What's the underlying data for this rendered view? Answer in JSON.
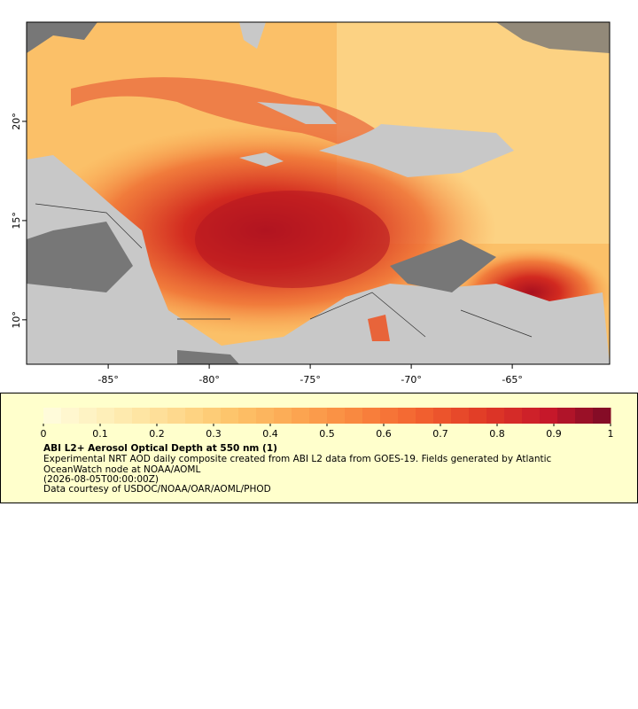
{
  "map": {
    "xlim": [
      -89.04,
      -60.18
    ],
    "ylim": [
      7.76,
      25.0
    ],
    "xticks": [
      {
        "value": -85,
        "label": "-85°"
      },
      {
        "value": -80,
        "label": "-80°"
      },
      {
        "value": -75,
        "label": "-75°"
      },
      {
        "value": -70,
        "label": "-70°"
      },
      {
        "value": -65,
        "label": "-65°"
      }
    ],
    "yticks": [
      {
        "value": 10,
        "label": "10°"
      },
      {
        "value": 15,
        "label": "15°"
      },
      {
        "value": 20,
        "label": "20°"
      }
    ]
  },
  "colorbar": {
    "lim": [
      0,
      1
    ],
    "ticks": [
      0,
      0.1,
      0.2,
      0.3,
      0.4,
      0.5,
      0.6,
      0.7,
      0.8,
      0.9,
      1
    ],
    "colormap": [
      "#fffde0",
      "#feefb8",
      "#fedc92",
      "#fdc46a",
      "#fca752",
      "#f9863e",
      "#f2612f",
      "#e03a26",
      "#c7182a",
      "#7a0a25"
    ]
  },
  "legend": {
    "title": "ABI L2+ Aerosol Optical Depth at 550 nm (1)",
    "description": "Experimental NRT AOD daily composite created from ABI L2 data from GOES-19. Fields generated by Atlantic OceanWatch node at NOAA/AOML",
    "time": "(2026-08-05T00:00:00Z)",
    "credit": "Data courtesy of USDOC/NOAA/OAR/AOML/PHOD"
  }
}
